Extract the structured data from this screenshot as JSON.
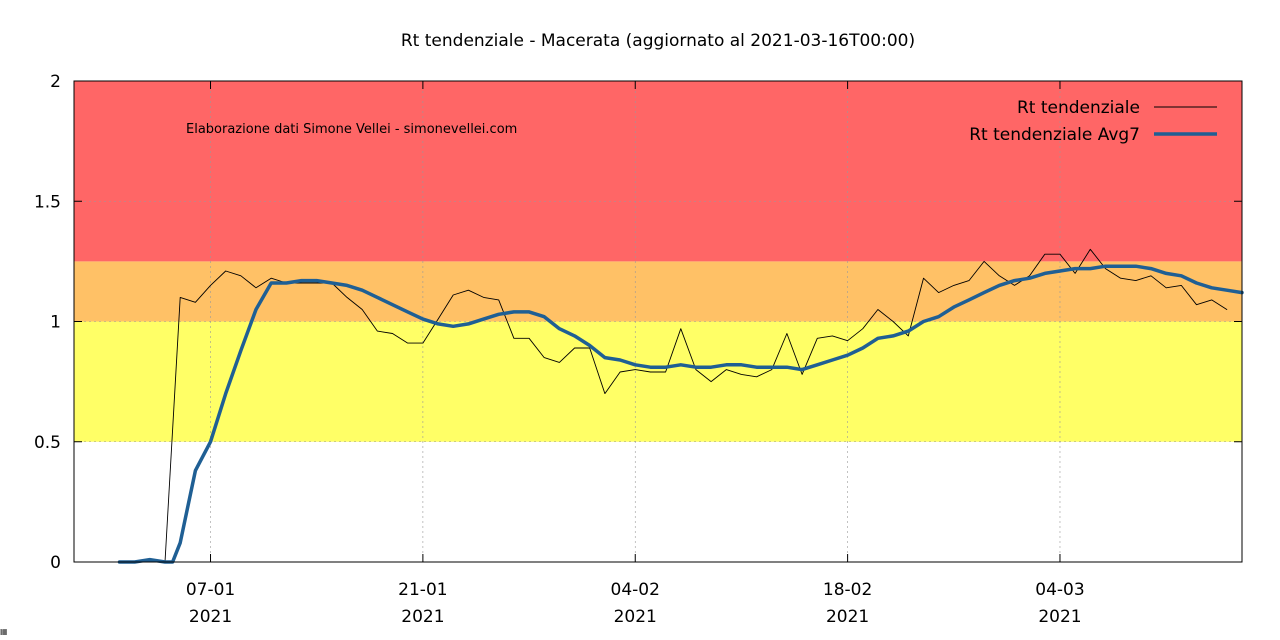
{
  "chart_data": {
    "type": "line",
    "title": "Rt tendenziale - Macerata (aggiornato al 2021-03-16T00:00)",
    "annotation": "Elaborazione dati Simone Vellei - simonevellei.com",
    "ylim": [
      0,
      2
    ],
    "y_ticks": [
      "0",
      "0.5",
      "1",
      "1.5",
      "2"
    ],
    "x_range": [
      "2020-12-29",
      "2021-03-16"
    ],
    "x_ticks": [
      {
        "date": "2021-01-07",
        "day": "07-01",
        "year": "2021"
      },
      {
        "date": "2021-01-21",
        "day": "21-01",
        "year": "2021"
      },
      {
        "date": "2021-02-04",
        "day": "04-02",
        "year": "2021"
      },
      {
        "date": "2021-02-18",
        "day": "18-02",
        "year": "2021"
      },
      {
        "date": "2021-03-04",
        "day": "04-03",
        "year": "2021"
      }
    ],
    "bands": [
      {
        "from": 0.5,
        "to": 1.0,
        "color": "#ffff66"
      },
      {
        "from": 1.0,
        "to": 1.25,
        "color": "#ffc166"
      },
      {
        "from": 1.25,
        "to": 2.0,
        "color": "#ff6666"
      }
    ],
    "legend_position": "top-right",
    "series": [
      {
        "name": "Rt tendenziale",
        "color": "#000000",
        "style": "thin",
        "points": [
          [
            "2021-01-01",
            0
          ],
          [
            "2021-01-02",
            0
          ],
          [
            "2021-01-03",
            0.01
          ],
          [
            "2021-01-04",
            0.0
          ],
          [
            "2021-01-05",
            1.1
          ],
          [
            "2021-01-06",
            1.08
          ],
          [
            "2021-01-07",
            1.15
          ],
          [
            "2021-01-08",
            1.21
          ],
          [
            "2021-01-09",
            1.19
          ],
          [
            "2021-01-10",
            1.14
          ],
          [
            "2021-01-11",
            1.18
          ],
          [
            "2021-01-12",
            1.16
          ],
          [
            "2021-01-13",
            1.16
          ],
          [
            "2021-01-14",
            1.16
          ],
          [
            "2021-01-15",
            1.16
          ],
          [
            "2021-01-16",
            1.1
          ],
          [
            "2021-01-17",
            1.05
          ],
          [
            "2021-01-18",
            0.96
          ],
          [
            "2021-01-19",
            0.95
          ],
          [
            "2021-01-20",
            0.91
          ],
          [
            "2021-01-21",
            0.91
          ],
          [
            "2021-01-22",
            1.01
          ],
          [
            "2021-01-23",
            1.11
          ],
          [
            "2021-01-24",
            1.13
          ],
          [
            "2021-01-25",
            1.1
          ],
          [
            "2021-01-26",
            1.09
          ],
          [
            "2021-01-27",
            0.93
          ],
          [
            "2021-01-28",
            0.93
          ],
          [
            "2021-01-29",
            0.85
          ],
          [
            "2021-01-30",
            0.83
          ],
          [
            "2021-01-31",
            0.89
          ],
          [
            "2021-02-01",
            0.89
          ],
          [
            "2021-02-02",
            0.7
          ],
          [
            "2021-02-03",
            0.79
          ],
          [
            "2021-02-04",
            0.8
          ],
          [
            "2021-02-05",
            0.79
          ],
          [
            "2021-02-06",
            0.79
          ],
          [
            "2021-02-07",
            0.97
          ],
          [
            "2021-02-08",
            0.8
          ],
          [
            "2021-02-09",
            0.75
          ],
          [
            "2021-02-10",
            0.8
          ],
          [
            "2021-02-11",
            0.78
          ],
          [
            "2021-02-12",
            0.77
          ],
          [
            "2021-02-13",
            0.8
          ],
          [
            "2021-02-14",
            0.95
          ],
          [
            "2021-02-15",
            0.78
          ],
          [
            "2021-02-16",
            0.93
          ],
          [
            "2021-02-17",
            0.94
          ],
          [
            "2021-02-18",
            0.92
          ],
          [
            "2021-02-19",
            0.97
          ],
          [
            "2021-02-20",
            1.05
          ],
          [
            "2021-02-21",
            1.0
          ],
          [
            "2021-02-22",
            0.94
          ],
          [
            "2021-02-23",
            1.18
          ],
          [
            "2021-02-24",
            1.12
          ],
          [
            "2021-02-25",
            1.15
          ],
          [
            "2021-02-26",
            1.17
          ],
          [
            "2021-02-27",
            1.25
          ],
          [
            "2021-02-28",
            1.19
          ],
          [
            "2021-03-01",
            1.15
          ],
          [
            "2021-03-02",
            1.19
          ],
          [
            "2021-03-03",
            1.28
          ],
          [
            "2021-03-04",
            1.28
          ],
          [
            "2021-03-05",
            1.2
          ],
          [
            "2021-03-06",
            1.3
          ],
          [
            "2021-03-07",
            1.22
          ],
          [
            "2021-03-08",
            1.18
          ],
          [
            "2021-03-09",
            1.17
          ],
          [
            "2021-03-10",
            1.19
          ],
          [
            "2021-03-11",
            1.14
          ],
          [
            "2021-03-12",
            1.15
          ],
          [
            "2021-03-13",
            1.07
          ],
          [
            "2021-03-14",
            1.09
          ],
          [
            "2021-03-15",
            1.05
          ]
        ]
      },
      {
        "name": "Rt tendenziale Avg7",
        "color": "#1f5f94",
        "style": "thick",
        "points": [
          [
            "2021-01-01",
            0
          ],
          [
            "2021-01-02",
            0
          ],
          [
            "2021-01-03",
            0.01
          ],
          [
            "2021-01-04",
            0.0
          ],
          [
            "2021-01-04.5",
            0.0
          ],
          [
            "2021-01-05",
            0.08
          ],
          [
            "2021-01-06",
            0.38
          ],
          [
            "2021-01-07",
            0.5
          ],
          [
            "2021-01-08",
            0.7
          ],
          [
            "2021-01-09",
            0.88
          ],
          [
            "2021-01-10",
            1.05
          ],
          [
            "2021-01-11",
            1.16
          ],
          [
            "2021-01-12",
            1.16
          ],
          [
            "2021-01-13",
            1.17
          ],
          [
            "2021-01-14",
            1.17
          ],
          [
            "2021-01-15",
            1.16
          ],
          [
            "2021-01-16",
            1.15
          ],
          [
            "2021-01-17",
            1.13
          ],
          [
            "2021-01-18",
            1.1
          ],
          [
            "2021-01-19",
            1.07
          ],
          [
            "2021-01-20",
            1.04
          ],
          [
            "2021-01-21",
            1.01
          ],
          [
            "2021-01-22",
            0.99
          ],
          [
            "2021-01-23",
            0.98
          ],
          [
            "2021-01-24",
            0.99
          ],
          [
            "2021-01-25",
            1.01
          ],
          [
            "2021-01-26",
            1.03
          ],
          [
            "2021-01-27",
            1.04
          ],
          [
            "2021-01-28",
            1.04
          ],
          [
            "2021-01-29",
            1.02
          ],
          [
            "2021-01-30",
            0.97
          ],
          [
            "2021-01-31",
            0.94
          ],
          [
            "2021-02-01",
            0.9
          ],
          [
            "2021-02-02",
            0.85
          ],
          [
            "2021-02-03",
            0.84
          ],
          [
            "2021-02-04",
            0.82
          ],
          [
            "2021-02-05",
            0.81
          ],
          [
            "2021-02-06",
            0.81
          ],
          [
            "2021-02-07",
            0.82
          ],
          [
            "2021-02-08",
            0.81
          ],
          [
            "2021-02-09",
            0.81
          ],
          [
            "2021-02-10",
            0.82
          ],
          [
            "2021-02-11",
            0.82
          ],
          [
            "2021-02-12",
            0.81
          ],
          [
            "2021-02-13",
            0.81
          ],
          [
            "2021-02-14",
            0.81
          ],
          [
            "2021-02-15",
            0.8
          ],
          [
            "2021-02-16",
            0.82
          ],
          [
            "2021-02-17",
            0.84
          ],
          [
            "2021-02-18",
            0.86
          ],
          [
            "2021-02-19",
            0.89
          ],
          [
            "2021-02-20",
            0.93
          ],
          [
            "2021-02-21",
            0.94
          ],
          [
            "2021-02-22",
            0.96
          ],
          [
            "2021-02-23",
            1.0
          ],
          [
            "2021-02-24",
            1.02
          ],
          [
            "2021-02-25",
            1.06
          ],
          [
            "2021-02-26",
            1.09
          ],
          [
            "2021-02-27",
            1.12
          ],
          [
            "2021-02-28",
            1.15
          ],
          [
            "2021-03-01",
            1.17
          ],
          [
            "2021-03-02",
            1.18
          ],
          [
            "2021-03-03",
            1.2
          ],
          [
            "2021-03-04",
            1.21
          ],
          [
            "2021-03-05",
            1.22
          ],
          [
            "2021-03-06",
            1.22
          ],
          [
            "2021-03-07",
            1.23
          ],
          [
            "2021-03-08",
            1.23
          ],
          [
            "2021-03-09",
            1.23
          ],
          [
            "2021-03-10",
            1.22
          ],
          [
            "2021-03-11",
            1.2
          ],
          [
            "2021-03-12",
            1.19
          ],
          [
            "2021-03-13",
            1.16
          ],
          [
            "2021-03-14",
            1.14
          ],
          [
            "2021-03-15",
            1.13
          ],
          [
            "2021-03-16",
            1.12
          ]
        ]
      }
    ]
  }
}
